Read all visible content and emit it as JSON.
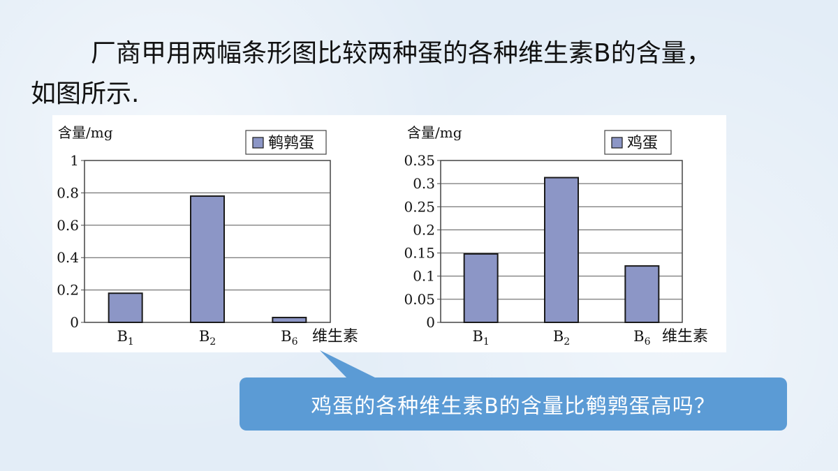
{
  "intro": {
    "line1": "厂商甲用两幅条形图比较两种蛋的各种维生素B的含量，",
    "line2": "如图所示."
  },
  "question": "鸡蛋的各种维生素B的含量比鹌鹑蛋高吗？",
  "colors": {
    "bar": "#8c96c6",
    "bubble": "#5b9bd5"
  },
  "chart_data": [
    {
      "type": "bar",
      "ylabel": "含量/mg",
      "xlabel": "维生素",
      "legend": "鹌鹑蛋",
      "legend_position": "top-right",
      "grid": true,
      "categories": [
        "B1",
        "B2",
        "B6"
      ],
      "values": [
        0.18,
        0.78,
        0.03
      ],
      "ylim": [
        0,
        1
      ],
      "yticks": [
        "0",
        "0.2",
        "0.4",
        "0.6",
        "0.8",
        "1"
      ]
    },
    {
      "type": "bar",
      "ylabel": "含量/mg",
      "xlabel": "维生素",
      "legend": "鸡蛋",
      "legend_position": "top-right",
      "grid": true,
      "categories": [
        "B1",
        "B2",
        "B6"
      ],
      "values": [
        0.148,
        0.313,
        0.122
      ],
      "ylim": [
        0,
        0.35
      ],
      "yticks": [
        "0",
        "0.05",
        "0.1",
        "0.15",
        "0.2",
        "0.25",
        "0.3",
        "0.35"
      ]
    }
  ]
}
